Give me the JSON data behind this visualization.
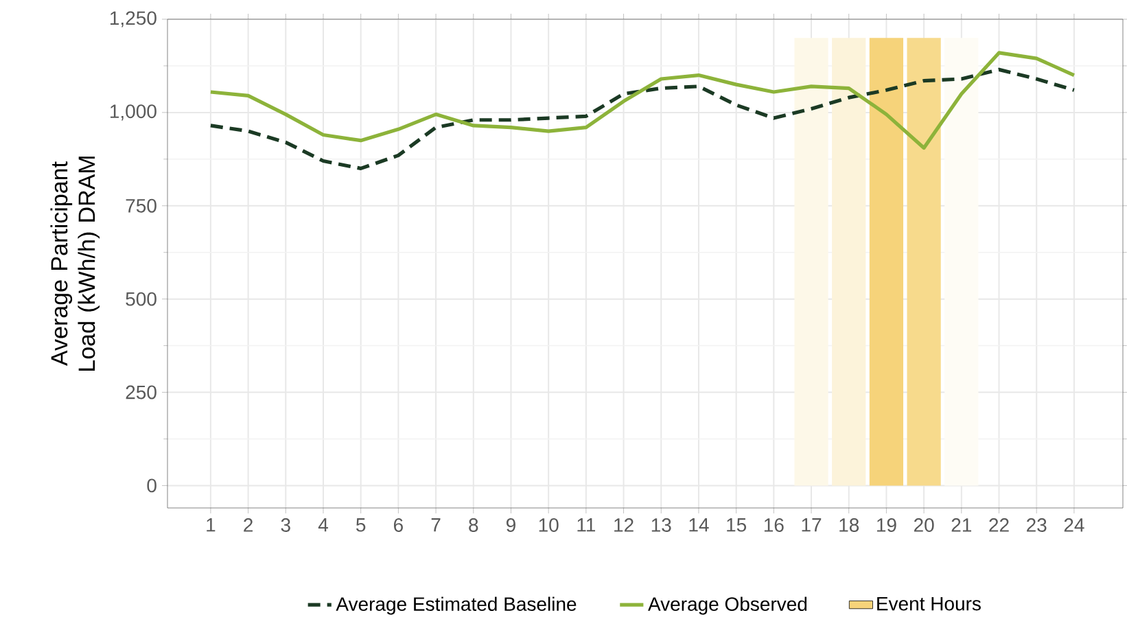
{
  "chart_data": {
    "type": "line",
    "ylabel": "Average Participant Load (kWh/h) DRAM",
    "categories": [
      "1",
      "2",
      "3",
      "4",
      "5",
      "6",
      "7",
      "8",
      "9",
      "10",
      "11",
      "12",
      "13",
      "14",
      "15",
      "16",
      "17",
      "18",
      "19",
      "20",
      "21",
      "22",
      "23",
      "24"
    ],
    "series": [
      {
        "type": "bar",
        "name": "Event Hours",
        "color": "#f6d37a",
        "colors": [
          "#ffffff",
          "#ffffff",
          "#ffffff",
          "#ffffff",
          "#ffffff",
          "#ffffff",
          "#ffffff",
          "#ffffff",
          "#ffffff",
          "#ffffff",
          "#ffffff",
          "#ffffff",
          "#ffffff",
          "#ffffff",
          "#ffffff",
          "#ffffff",
          "#fdf8e8",
          "#fcf3da",
          "#f6d37a",
          "#f7da8c",
          "#fefcf5",
          "#ffffff",
          "#ffffff",
          "#ffffff"
        ],
        "values": [
          null,
          null,
          null,
          null,
          null,
          null,
          null,
          null,
          null,
          null,
          null,
          null,
          null,
          null,
          null,
          null,
          1200,
          1200,
          1200,
          1200,
          1200,
          null,
          null,
          null
        ]
      },
      {
        "name": "Average Estimated Baseline",
        "color": "#1b3a24",
        "line_style": "dashed",
        "values": [
          965,
          950,
          920,
          870,
          850,
          885,
          960,
          980,
          980,
          985,
          990,
          1050,
          1065,
          1070,
          1020,
          985,
          1010,
          1040,
          1060,
          1085,
          1090,
          1115,
          1090,
          1060
        ]
      },
      {
        "name": "Average Observed",
        "color": "#8db33a",
        "line_style": "solid",
        "values": [
          1055,
          1045,
          995,
          940,
          925,
          955,
          995,
          965,
          960,
          950,
          960,
          1030,
          1090,
          1100,
          1075,
          1055,
          1070,
          1065,
          995,
          905,
          1050,
          1160,
          1145,
          1100
        ]
      }
    ],
    "ylim": [
      -60,
      1250
    ],
    "yticks": [
      0,
      250,
      500,
      750,
      {
        "value": 1000,
        "label": "1,000"
      },
      {
        "value": 1250,
        "label": "1,250"
      }
    ],
    "grid": true,
    "legend": "bottom",
    "marker": "none"
  }
}
